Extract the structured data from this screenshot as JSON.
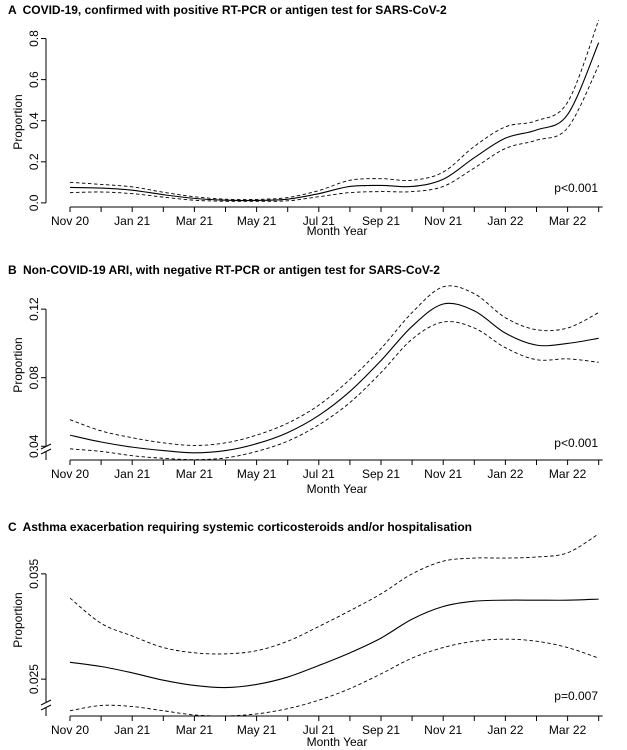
{
  "chart_data": [
    {
      "type": "line",
      "panel": "A",
      "title": "COVID-19, confirmed with positive RT-PCR or antigen test for SARS-CoV-2",
      "xlabel": "Month Year",
      "ylabel": "Proportion",
      "x": [
        "Nov 20",
        "Dec 20",
        "Jan 21",
        "Feb 21",
        "Mar 21",
        "Apr 21",
        "May 21",
        "Jun 21",
        "Jul 21",
        "Aug 21",
        "Sep 21",
        "Oct 21",
        "Nov 21",
        "Dec 21",
        "Jan 22",
        "Feb 22",
        "Mar 22",
        "Apr 22"
      ],
      "x_tick_labels": [
        "Nov 20",
        "Jan 21",
        "Mar 21",
        "May 21",
        "Jul 21",
        "Sep 21",
        "Nov 21",
        "Jan 22",
        "Mar 22"
      ],
      "y_ticks": [
        "0.0",
        "0.2",
        "0.4",
        "0.6",
        "0.8"
      ],
      "ylim": [
        -0.02,
        0.9
      ],
      "axis_break": false,
      "annotation": "p<0.001",
      "series": [
        {
          "role": "estimate",
          "style": "solid",
          "values": [
            0.075,
            0.072,
            0.062,
            0.04,
            0.022,
            0.013,
            0.012,
            0.018,
            0.045,
            0.08,
            0.085,
            0.08,
            0.115,
            0.22,
            0.315,
            0.355,
            0.43,
            0.78
          ]
        },
        {
          "role": "upper",
          "style": "dashed",
          "values": [
            0.1,
            0.09,
            0.078,
            0.052,
            0.03,
            0.018,
            0.017,
            0.026,
            0.06,
            0.11,
            0.118,
            0.11,
            0.15,
            0.275,
            0.37,
            0.4,
            0.49,
            0.89
          ]
        },
        {
          "role": "lower",
          "style": "dashed",
          "values": [
            0.05,
            0.053,
            0.045,
            0.028,
            0.013,
            0.008,
            0.008,
            0.01,
            0.03,
            0.05,
            0.055,
            0.055,
            0.08,
            0.17,
            0.265,
            0.305,
            0.365,
            0.67
          ]
        }
      ]
    },
    {
      "type": "line",
      "panel": "B",
      "title": "Non-COVID-19 ARI, with negative RT-PCR or antigen test for SARS-CoV-2",
      "xlabel": "Month Year",
      "ylabel": "Proportion",
      "x": [
        "Nov 20",
        "Dec 20",
        "Jan 21",
        "Feb 21",
        "Mar 21",
        "Apr 21",
        "May 21",
        "Jun 21",
        "Jul 21",
        "Aug 21",
        "Sep 21",
        "Oct 21",
        "Nov 21",
        "Dec 21",
        "Jan 22",
        "Feb 22",
        "Mar 22",
        "Apr 22"
      ],
      "x_tick_labels": [
        "Nov 20",
        "Jan 21",
        "Mar 21",
        "May 21",
        "Jul 21",
        "Sep 21",
        "Nov 21",
        "Jan 22",
        "Mar 22"
      ],
      "y_ticks": [
        "0.04",
        "0.08",
        "0.12"
      ],
      "ylim": [
        0.032,
        0.137
      ],
      "axis_break": true,
      "annotation": "p<0.001",
      "series": [
        {
          "role": "estimate",
          "style": "solid",
          "values": [
            0.0465,
            0.0425,
            0.0395,
            0.0375,
            0.0362,
            0.0375,
            0.0415,
            0.048,
            0.058,
            0.072,
            0.09,
            0.11,
            0.123,
            0.119,
            0.106,
            0.099,
            0.1,
            0.103
          ]
        },
        {
          "role": "upper",
          "style": "dashed",
          "values": [
            0.0555,
            0.049,
            0.045,
            0.042,
            0.0405,
            0.042,
            0.0465,
            0.0535,
            0.064,
            0.079,
            0.097,
            0.118,
            0.133,
            0.129,
            0.115,
            0.108,
            0.109,
            0.118
          ]
        },
        {
          "role": "lower",
          "style": "dashed",
          "values": [
            0.0385,
            0.037,
            0.0345,
            0.033,
            0.0322,
            0.0332,
            0.037,
            0.043,
            0.0525,
            0.0655,
            0.083,
            0.1025,
            0.1125,
            0.109,
            0.0975,
            0.0905,
            0.091,
            0.089
          ]
        }
      ]
    },
    {
      "type": "line",
      "panel": "C",
      "title": "Asthma exacerbation requiring systemic corticosteroids and/or hospitalisation",
      "xlabel": "Month Year",
      "ylabel": "Proportion",
      "x": [
        "Nov 20",
        "Dec 20",
        "Jan 21",
        "Feb 21",
        "Mar 21",
        "Apr 21",
        "May 21",
        "Jun 21",
        "Jul 21",
        "Aug 21",
        "Sep 21",
        "Oct 21",
        "Nov 21",
        "Dec 21",
        "Jan 22",
        "Feb 22",
        "Mar 22",
        "Apr 22"
      ],
      "x_tick_labels": [
        "Nov 20",
        "Jan 21",
        "Mar 21",
        "May 21",
        "Jul 21",
        "Sep 21",
        "Nov 21",
        "Jan 22",
        "Mar 22"
      ],
      "y_ticks": [
        "0.025",
        "0.035"
      ],
      "ylim": [
        0.0215,
        0.0385
      ],
      "axis_break": true,
      "annotation": "p=0.007",
      "series": [
        {
          "role": "estimate",
          "style": "solid",
          "values": [
            0.0266,
            0.0262,
            0.0256,
            0.0249,
            0.0244,
            0.0242,
            0.0245,
            0.0252,
            0.0263,
            0.0275,
            0.0289,
            0.0307,
            0.0319,
            0.0324,
            0.0325,
            0.0325,
            0.0325,
            0.0326
          ]
        },
        {
          "role": "upper",
          "style": "dashed",
          "values": [
            0.0327,
            0.0303,
            0.0291,
            0.028,
            0.0275,
            0.0274,
            0.0277,
            0.0286,
            0.03,
            0.0315,
            0.0331,
            0.035,
            0.0362,
            0.0365,
            0.0365,
            0.0366,
            0.037,
            0.0388
          ]
        },
        {
          "role": "lower",
          "style": "dashed",
          "values": [
            0.022,
            0.0225,
            0.0224,
            0.022,
            0.0216,
            0.0215,
            0.0217,
            0.0222,
            0.023,
            0.0241,
            0.0255,
            0.027,
            0.028,
            0.0286,
            0.0288,
            0.0286,
            0.028,
            0.027
          ]
        }
      ]
    }
  ]
}
